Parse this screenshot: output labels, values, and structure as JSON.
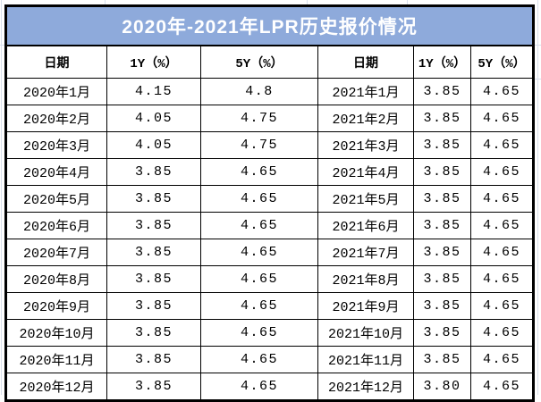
{
  "title": "2020年-2021年LPR历史报价情况",
  "chart_data": {
    "type": "table",
    "title": "2020年-2021年LPR历史报价情况",
    "columns": [
      "日期",
      "1Y（%）",
      "5Y（%）",
      "日期",
      "1Y（%）",
      "5Y（%）"
    ],
    "rows": [
      [
        "2020年1月",
        "4.15",
        "4.8",
        "2021年1月",
        "3.85",
        "4.65"
      ],
      [
        "2020年2月",
        "4.05",
        "4.75",
        "2021年2月",
        "3.85",
        "4.65"
      ],
      [
        "2020年3月",
        "4.05",
        "4.75",
        "2021年3月",
        "3.85",
        "4.65"
      ],
      [
        "2020年4月",
        "3.85",
        "4.65",
        "2021年4月",
        "3.85",
        "4.65"
      ],
      [
        "2020年5月",
        "3.85",
        "4.65",
        "2021年5月",
        "3.85",
        "4.65"
      ],
      [
        "2020年6月",
        "3.85",
        "4.65",
        "2021年6月",
        "3.85",
        "4.65"
      ],
      [
        "2020年7月",
        "3.85",
        "4.65",
        "2021年7月",
        "3.85",
        "4.65"
      ],
      [
        "2020年8月",
        "3.85",
        "4.65",
        "2021年8月",
        "3.85",
        "4.65"
      ],
      [
        "2020年9月",
        "3.85",
        "4.65",
        "2021年9月",
        "3.85",
        "4.65"
      ],
      [
        "2020年10月",
        "3.85",
        "4.65",
        "2021年10月",
        "3.85",
        "4.65"
      ],
      [
        "2020年11月",
        "3.85",
        "4.65",
        "2021年11月",
        "3.85",
        "4.65"
      ],
      [
        "2020年12月",
        "3.85",
        "4.65",
        "2021年12月",
        "3.80",
        "4.65"
      ]
    ],
    "series": [
      {
        "name": "1Y（%）",
        "x": [
          "2020年1月",
          "2020年2月",
          "2020年3月",
          "2020年4月",
          "2020年5月",
          "2020年6月",
          "2020年7月",
          "2020年8月",
          "2020年9月",
          "2020年10月",
          "2020年11月",
          "2020年12月",
          "2021年1月",
          "2021年2月",
          "2021年3月",
          "2021年4月",
          "2021年5月",
          "2021年6月",
          "2021年7月",
          "2021年8月",
          "2021年9月",
          "2021年10月",
          "2021年11月",
          "2021年12月"
        ],
        "values": [
          4.15,
          4.05,
          4.05,
          3.85,
          3.85,
          3.85,
          3.85,
          3.85,
          3.85,
          3.85,
          3.85,
          3.85,
          3.85,
          3.85,
          3.85,
          3.85,
          3.85,
          3.85,
          3.85,
          3.85,
          3.85,
          3.85,
          3.85,
          3.8
        ]
      },
      {
        "name": "5Y（%）",
        "x": [
          "2020年1月",
          "2020年2月",
          "2020年3月",
          "2020年4月",
          "2020年5月",
          "2020年6月",
          "2020年7月",
          "2020年8月",
          "2020年9月",
          "2020年10月",
          "2020年11月",
          "2020年12月",
          "2021年1月",
          "2021年2月",
          "2021年3月",
          "2021年4月",
          "2021年5月",
          "2021年6月",
          "2021年7月",
          "2021年8月",
          "2021年9月",
          "2021年10月",
          "2021年11月",
          "2021年12月"
        ],
        "values": [
          4.8,
          4.75,
          4.75,
          4.65,
          4.65,
          4.65,
          4.65,
          4.65,
          4.65,
          4.65,
          4.65,
          4.65,
          4.65,
          4.65,
          4.65,
          4.65,
          4.65,
          4.65,
          4.65,
          4.65,
          4.65,
          4.65,
          4.65,
          4.65
        ]
      }
    ]
  },
  "colors": {
    "title_bg": "#8EAADB",
    "title_text": "#FFFFFF",
    "table_border": "#000000",
    "cell_text": "#000000",
    "sheet_gridline": "#D9E0EC"
  }
}
